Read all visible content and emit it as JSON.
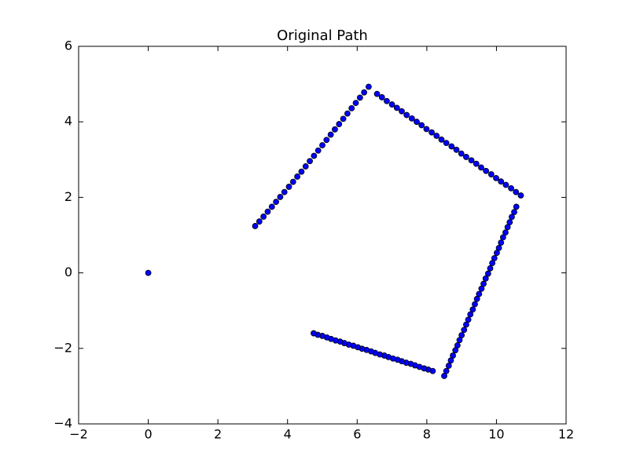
{
  "chart_data": {
    "type": "scatter",
    "title": "Original Path",
    "series": [
      {
        "color": "#0000ff",
        "x": [
          0,
          3.07,
          3.19,
          3.31,
          3.43,
          3.55,
          3.67,
          3.79,
          3.91,
          4.04,
          4.16,
          4.28,
          4.4,
          4.52,
          4.64,
          4.76,
          4.88,
          5.0,
          5.12,
          5.24,
          5.36,
          5.48,
          5.6,
          5.72,
          5.84,
          5.96,
          6.08,
          6.2,
          6.33,
          6.57,
          6.71,
          6.85,
          7.0,
          7.14,
          7.28,
          7.42,
          7.57,
          7.71,
          7.85,
          7.99,
          8.14,
          8.28,
          8.42,
          8.56,
          8.71,
          8.85,
          8.99,
          9.13,
          9.28,
          9.42,
          9.56,
          9.7,
          9.85,
          9.99,
          10.13,
          10.27,
          10.42,
          10.56,
          10.7,
          10.57,
          10.51,
          10.44,
          10.38,
          10.32,
          10.26,
          10.19,
          10.13,
          10.07,
          10.01,
          9.94,
          9.88,
          9.82,
          9.76,
          9.69,
          9.63,
          9.57,
          9.5,
          9.44,
          9.38,
          9.32,
          9.25,
          9.19,
          9.13,
          9.07,
          9.0,
          8.94,
          8.88,
          8.82,
          8.75,
          8.69,
          8.63,
          8.56,
          8.5,
          8.17,
          8.04,
          7.92,
          7.79,
          7.66,
          7.54,
          7.41,
          7.28,
          7.16,
          7.03,
          6.9,
          6.78,
          6.65,
          6.52,
          6.4,
          6.27,
          6.14,
          6.02,
          5.89,
          5.76,
          5.63,
          5.51,
          5.38,
          5.25,
          5.13,
          5.0,
          4.87,
          4.75
        ],
        "values": [
          0,
          1.24,
          1.36,
          1.49,
          1.62,
          1.75,
          1.88,
          2.01,
          2.14,
          2.28,
          2.41,
          2.55,
          2.68,
          2.82,
          2.96,
          3.1,
          3.24,
          3.38,
          3.52,
          3.66,
          3.8,
          3.94,
          4.08,
          4.22,
          4.36,
          4.5,
          4.64,
          4.78,
          4.93,
          4.74,
          4.65,
          4.55,
          4.46,
          4.37,
          4.28,
          4.18,
          4.09,
          4.0,
          3.91,
          3.81,
          3.72,
          3.63,
          3.53,
          3.44,
          3.35,
          3.26,
          3.16,
          3.07,
          2.98,
          2.89,
          2.79,
          2.7,
          2.61,
          2.51,
          2.42,
          2.33,
          2.24,
          2.14,
          2.05,
          1.75,
          1.61,
          1.48,
          1.34,
          1.21,
          1.07,
          0.94,
          0.8,
          0.66,
          0.53,
          0.39,
          0.26,
          0.12,
          -0.02,
          -0.15,
          -0.29,
          -0.42,
          -0.56,
          -0.69,
          -0.83,
          -0.97,
          -1.1,
          -1.24,
          -1.37,
          -1.51,
          -1.65,
          -1.78,
          -1.92,
          -2.05,
          -2.19,
          -2.32,
          -2.46,
          -2.6,
          -2.73,
          -2.6,
          -2.56,
          -2.53,
          -2.49,
          -2.45,
          -2.41,
          -2.38,
          -2.34,
          -2.3,
          -2.27,
          -2.23,
          -2.19,
          -2.16,
          -2.12,
          -2.08,
          -2.04,
          -2.01,
          -1.97,
          -1.93,
          -1.9,
          -1.86,
          -1.82,
          -1.79,
          -1.75,
          -1.71,
          -1.67,
          -1.64,
          -1.6
        ]
      }
    ],
    "xlim": [
      -2,
      12
    ],
    "ylim": [
      -4,
      6
    ],
    "xticks": [
      {
        "value": -2,
        "label": "−2"
      },
      0,
      2,
      4,
      6,
      8,
      10,
      12
    ],
    "yticks": [
      {
        "value": -4,
        "label": "−4"
      },
      {
        "value": -2,
        "label": "−2"
      },
      0,
      2,
      4,
      6
    ],
    "grid": false
  }
}
